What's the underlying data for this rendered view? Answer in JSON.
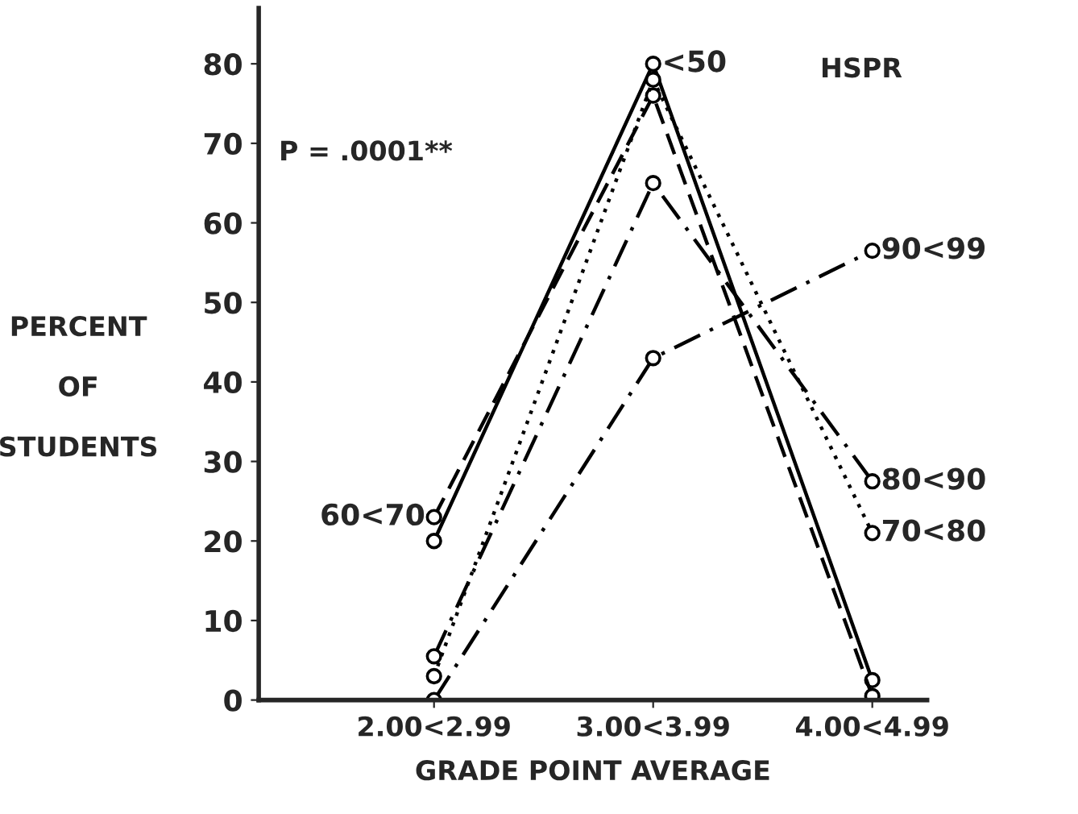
{
  "chart_data": {
    "type": "line",
    "xlabel": "GRADE POINT AVERAGE",
    "ylabel": "PERCENT\n\nOF\n\nSTUDENTS",
    "categories": [
      "2.00<2.99",
      "3.00<3.99",
      "4.00<4.99"
    ],
    "series": [
      {
        "name": "<50",
        "color": "#000000",
        "line_style": "solid",
        "values": [
          20,
          80,
          2.5
        ]
      },
      {
        "name": "60<70",
        "color": "#000000",
        "line_style": "dashed",
        "values": [
          23,
          76,
          0.5
        ]
      },
      {
        "name": "70<80",
        "color": "#000000",
        "line_style": "dotted",
        "values": [
          3,
          78,
          21
        ]
      },
      {
        "name": "80<90",
        "color": "#000000",
        "line_style": "dashdot",
        "values": [
          5.5,
          65,
          27.5
        ]
      },
      {
        "name": "90<99",
        "color": "#000000",
        "line_style": "dashdot",
        "values": [
          0,
          43,
          56.5
        ]
      }
    ],
    "annotations": [
      "P = .0001**",
      "HSPR"
    ],
    "ylim": [
      0,
      87
    ],
    "yticks": [
      0,
      10,
      20,
      30,
      40,
      50,
      60,
      70,
      80
    ],
    "marker": "circle",
    "grid": false,
    "legend": false
  }
}
